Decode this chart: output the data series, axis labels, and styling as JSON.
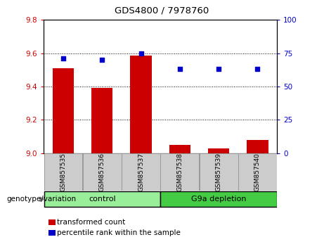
{
  "title": "GDS4800 / 7978760",
  "samples": [
    "GSM857535",
    "GSM857536",
    "GSM857537",
    "GSM857538",
    "GSM857539",
    "GSM857540"
  ],
  "bar_values": [
    9.51,
    9.39,
    9.585,
    9.05,
    9.03,
    9.08
  ],
  "dot_values": [
    71,
    70,
    75,
    63,
    63,
    63
  ],
  "ylim_left": [
    9.0,
    9.8
  ],
  "ylim_right": [
    0,
    100
  ],
  "yticks_left": [
    9.0,
    9.2,
    9.4,
    9.6,
    9.8
  ],
  "yticks_right": [
    0,
    25,
    50,
    75,
    100
  ],
  "bar_color": "#cc0000",
  "dot_color": "#0000cc",
  "bar_width": 0.55,
  "bg_color": "#ffffff",
  "groups": [
    {
      "label": "control",
      "indices": [
        0,
        1,
        2
      ],
      "color": "#99ee99"
    },
    {
      "label": "G9a depletion",
      "indices": [
        3,
        4,
        5
      ],
      "color": "#44cc44"
    }
  ],
  "group_label": "genotype/variation",
  "legend_items": [
    {
      "label": "transformed count",
      "color": "#cc0000"
    },
    {
      "label": "percentile rank within the sample",
      "color": "#0000cc"
    }
  ],
  "tick_box_color": "#cccccc",
  "tick_box_border": "#999999",
  "plot_bg": "#ffffff"
}
